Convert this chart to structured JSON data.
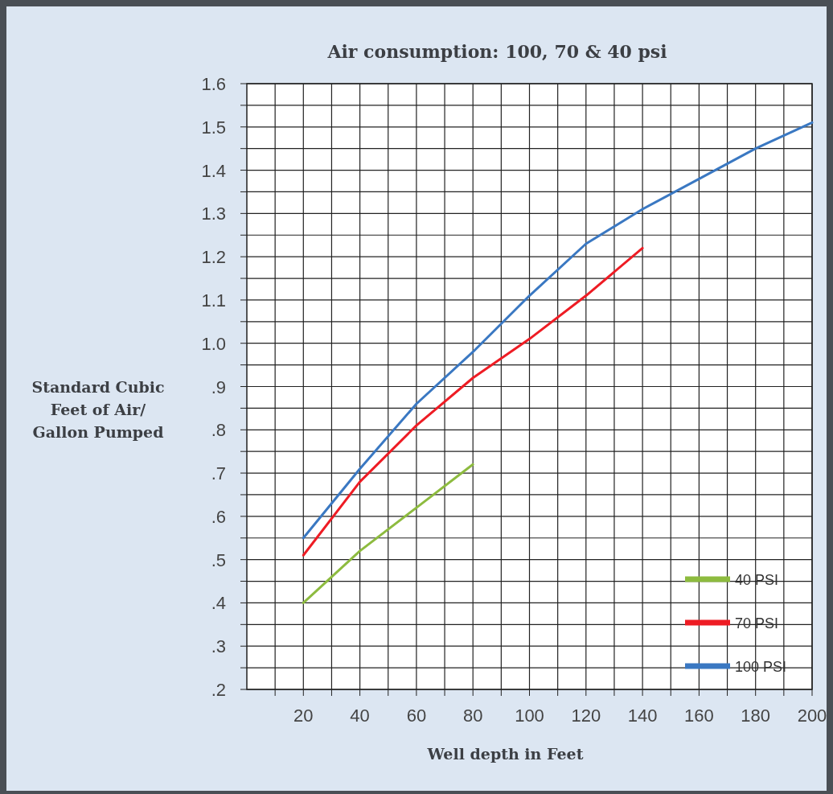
{
  "chart_data": {
    "type": "line",
    "title": "Air consumption: 100, 70 & 40 psi",
    "xlabel": "Well depth in Feet",
    "ylabel": "Standard Cubic\nFeet of Air/\nGallon Pumped",
    "x": [
      20,
      40,
      60,
      80,
      100,
      120,
      140,
      160,
      180,
      200
    ],
    "series": [
      {
        "name": "40 PSI",
        "color": "#8dbb3f",
        "values": [
          0.4,
          0.52,
          0.62,
          0.72,
          null,
          null,
          null,
          null,
          null,
          null
        ]
      },
      {
        "name": "70 PSI",
        "color": "#ee1c24",
        "values": [
          0.51,
          0.68,
          0.81,
          0.92,
          1.01,
          1.11,
          1.22,
          null,
          null,
          null
        ]
      },
      {
        "name": "100 PSI",
        "color": "#3a78c2",
        "values": [
          0.55,
          0.71,
          0.86,
          0.98,
          1.11,
          1.23,
          1.31,
          1.38,
          1.45,
          1.51
        ]
      }
    ],
    "xlim": [
      0,
      200
    ],
    "xticks": [
      {
        "value": 10,
        "label": null
      },
      20,
      {
        "value": 30,
        "label": null
      },
      40,
      {
        "value": 50,
        "label": null
      },
      60,
      {
        "value": 70,
        "label": null
      },
      80,
      {
        "value": 90,
        "label": null
      },
      100,
      {
        "value": 110,
        "label": null
      },
      120,
      {
        "value": 130,
        "label": null
      },
      140,
      {
        "value": 150,
        "label": null
      },
      160,
      {
        "value": 170,
        "label": null
      },
      180,
      {
        "value": 190,
        "label": null
      },
      200
    ],
    "ylim": [
      0.2,
      1.6
    ],
    "yticks": [
      {
        "value": 0.2,
        "label": ".2"
      },
      {
        "value": 0.25,
        "label": null
      },
      {
        "value": 0.3,
        "label": ".3"
      },
      {
        "value": 0.35,
        "label": null
      },
      {
        "value": 0.4,
        "label": ".4"
      },
      {
        "value": 0.45,
        "label": null
      },
      {
        "value": 0.5,
        "label": ".5"
      },
      {
        "value": 0.55,
        "label": null
      },
      {
        "value": 0.6,
        "label": ".6"
      },
      {
        "value": 0.65,
        "label": null
      },
      {
        "value": 0.7,
        "label": ".7"
      },
      {
        "value": 0.75,
        "label": null
      },
      {
        "value": 0.8,
        "label": ".8"
      },
      {
        "value": 0.85,
        "label": null
      },
      {
        "value": 0.9,
        "label": ".9"
      },
      {
        "value": 0.95,
        "label": null
      },
      {
        "value": 1.0,
        "label": "1.0"
      },
      {
        "value": 1.05,
        "label": null
      },
      {
        "value": 1.1,
        "label": "1.1"
      },
      {
        "value": 1.15,
        "label": null
      },
      {
        "value": 1.2,
        "label": "1.2"
      },
      {
        "value": 1.25,
        "label": null
      },
      {
        "value": 1.3,
        "label": "1.3"
      },
      {
        "value": 1.35,
        "label": null
      },
      {
        "value": 1.4,
        "label": "1.4"
      },
      {
        "value": 1.45,
        "label": null
      },
      {
        "value": 1.5,
        "label": "1.5"
      },
      {
        "value": 1.55,
        "label": null
      },
      {
        "value": 1.6,
        "label": "1.6"
      }
    ],
    "grid": true,
    "legend": "bottom right",
    "marker": "none",
    "line_style": "solid"
  }
}
